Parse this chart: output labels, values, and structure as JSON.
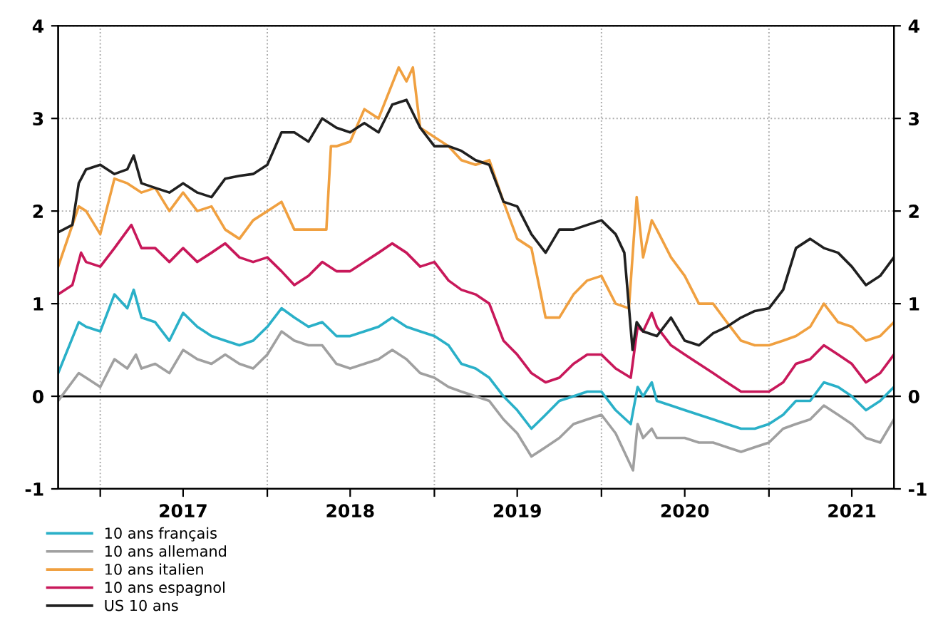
{
  "chart_data": {
    "type": "line",
    "xlim": [
      "2016-10-01",
      "2021-10-01"
    ],
    "xticks": [
      {
        "value": "2017-01-01",
        "label": null
      },
      {
        "value": "2017-07-01",
        "label": "2017"
      },
      {
        "value": "2018-01-01",
        "label": null
      },
      {
        "value": "2018-07-01",
        "label": "2018"
      },
      {
        "value": "2019-01-01",
        "label": null
      },
      {
        "value": "2019-07-01",
        "label": "2019"
      },
      {
        "value": "2020-01-01",
        "label": null
      },
      {
        "value": "2020-07-01",
        "label": "2020"
      },
      {
        "value": "2021-01-01",
        "label": null
      },
      {
        "value": "2021-07-01",
        "label": "2021"
      }
    ],
    "ylim": [
      -1,
      4
    ],
    "yticks": [
      -1,
      0,
      1,
      2,
      3,
      4
    ],
    "y2lim": [
      -1,
      4
    ],
    "y2ticks": [
      -1,
      0,
      1,
      2,
      3,
      4
    ],
    "grid": true,
    "legend": "bottom left",
    "line_style": "solid",
    "ref_lines": [
      {
        "axis": "y",
        "value": 0,
        "color": "#000000"
      }
    ],
    "series": [
      {
        "name": "10 ans français",
        "color": "#2ab0c8",
        "x": [
          "2016-10-01",
          "2016-11-15",
          "2016-12-01",
          "2017-01-01",
          "2017-02-01",
          "2017-03-01",
          "2017-03-15",
          "2017-04-01",
          "2017-05-01",
          "2017-06-01",
          "2017-07-01",
          "2017-08-01",
          "2017-09-01",
          "2017-10-01",
          "2017-11-01",
          "2017-12-01",
          "2018-01-01",
          "2018-02-01",
          "2018-03-01",
          "2018-04-01",
          "2018-05-01",
          "2018-06-01",
          "2018-07-01",
          "2018-08-01",
          "2018-09-01",
          "2018-10-01",
          "2018-11-01",
          "2018-12-01",
          "2019-01-01",
          "2019-02-01",
          "2019-03-01",
          "2019-04-01",
          "2019-05-01",
          "2019-06-01",
          "2019-07-01",
          "2019-08-01",
          "2019-09-01",
          "2019-10-01",
          "2019-11-01",
          "2019-12-01",
          "2020-01-01",
          "2020-02-01",
          "2020-03-05",
          "2020-03-20",
          "2020-04-01",
          "2020-04-20",
          "2020-05-01",
          "2020-06-01",
          "2020-07-01",
          "2020-08-01",
          "2020-09-01",
          "2020-10-01",
          "2020-11-01",
          "2020-12-01",
          "2021-01-01",
          "2021-02-01",
          "2021-03-01",
          "2021-04-01",
          "2021-05-01",
          "2021-06-01",
          "2021-07-01",
          "2021-08-01",
          "2021-09-01",
          "2021-10-01"
        ],
        "values": [
          0.25,
          0.8,
          0.75,
          0.7,
          1.1,
          0.95,
          1.15,
          0.85,
          0.8,
          0.6,
          0.9,
          0.75,
          0.65,
          0.6,
          0.55,
          0.6,
          0.75,
          0.95,
          0.85,
          0.75,
          0.8,
          0.65,
          0.65,
          0.7,
          0.75,
          0.85,
          0.75,
          0.7,
          0.65,
          0.55,
          0.35,
          0.3,
          0.2,
          0.0,
          -0.15,
          -0.35,
          -0.2,
          -0.05,
          0.0,
          0.05,
          0.05,
          -0.15,
          -0.3,
          0.1,
          0.0,
          0.15,
          -0.05,
          -0.1,
          -0.15,
          -0.2,
          -0.25,
          -0.3,
          -0.35,
          -0.35,
          -0.3,
          -0.2,
          -0.05,
          -0.05,
          0.15,
          0.1,
          0.0,
          -0.15,
          -0.05,
          0.1
        ]
      },
      {
        "name": "10 ans allemand",
        "color": "#a0a0a0",
        "x": [
          "2016-10-01",
          "2016-11-15",
          "2016-12-01",
          "2017-01-01",
          "2017-02-01",
          "2017-03-01",
          "2017-03-20",
          "2017-04-01",
          "2017-05-01",
          "2017-06-01",
          "2017-07-01",
          "2017-08-01",
          "2017-09-01",
          "2017-10-01",
          "2017-11-01",
          "2017-12-01",
          "2018-01-01",
          "2018-02-01",
          "2018-03-01",
          "2018-04-01",
          "2018-05-01",
          "2018-06-01",
          "2018-07-01",
          "2018-08-01",
          "2018-09-01",
          "2018-10-01",
          "2018-11-01",
          "2018-12-01",
          "2019-01-01",
          "2019-02-01",
          "2019-03-01",
          "2019-04-01",
          "2019-05-01",
          "2019-06-01",
          "2019-07-01",
          "2019-08-01",
          "2019-09-01",
          "2019-10-01",
          "2019-11-01",
          "2019-12-01",
          "2020-01-01",
          "2020-02-01",
          "2020-03-10",
          "2020-03-20",
          "2020-04-01",
          "2020-04-20",
          "2020-05-01",
          "2020-06-01",
          "2020-07-01",
          "2020-08-01",
          "2020-09-01",
          "2020-10-01",
          "2020-11-01",
          "2020-12-01",
          "2021-01-01",
          "2021-02-01",
          "2021-03-01",
          "2021-04-01",
          "2021-05-01",
          "2021-06-01",
          "2021-07-01",
          "2021-08-01",
          "2021-09-01",
          "2021-10-01"
        ],
        "values": [
          -0.05,
          0.25,
          0.2,
          0.1,
          0.4,
          0.3,
          0.45,
          0.3,
          0.35,
          0.25,
          0.5,
          0.4,
          0.35,
          0.45,
          0.35,
          0.3,
          0.45,
          0.7,
          0.6,
          0.55,
          0.55,
          0.35,
          0.3,
          0.35,
          0.4,
          0.5,
          0.4,
          0.25,
          0.2,
          0.1,
          0.05,
          0.0,
          -0.05,
          -0.25,
          -0.4,
          -0.65,
          -0.55,
          -0.45,
          -0.3,
          -0.25,
          -0.2,
          -0.4,
          -0.8,
          -0.3,
          -0.45,
          -0.35,
          -0.45,
          -0.45,
          -0.45,
          -0.5,
          -0.5,
          -0.55,
          -0.6,
          -0.55,
          -0.5,
          -0.35,
          -0.3,
          -0.25,
          -0.1,
          -0.2,
          -0.3,
          -0.45,
          -0.5,
          -0.25
        ]
      },
      {
        "name": "10 ans italien",
        "color": "#f0a040",
        "x": [
          "2016-10-01",
          "2016-11-15",
          "2016-12-01",
          "2017-01-01",
          "2017-02-01",
          "2017-03-01",
          "2017-04-01",
          "2017-05-01",
          "2017-06-01",
          "2017-07-01",
          "2017-08-01",
          "2017-09-01",
          "2017-10-01",
          "2017-11-01",
          "2017-12-01",
          "2018-01-01",
          "2018-02-01",
          "2018-03-01",
          "2018-04-01",
          "2018-05-10",
          "2018-05-20",
          "2018-06-01",
          "2018-07-01",
          "2018-08-01",
          "2018-09-01",
          "2018-10-15",
          "2018-11-01",
          "2018-11-15",
          "2018-12-01",
          "2019-01-01",
          "2019-02-01",
          "2019-03-01",
          "2019-04-01",
          "2019-05-01",
          "2019-06-01",
          "2019-07-01",
          "2019-08-01",
          "2019-09-01",
          "2019-10-01",
          "2019-11-01",
          "2019-12-01",
          "2020-01-01",
          "2020-02-01",
          "2020-03-01",
          "2020-03-18",
          "2020-04-01",
          "2020-04-20",
          "2020-05-01",
          "2020-06-01",
          "2020-07-01",
          "2020-08-01",
          "2020-09-01",
          "2020-10-01",
          "2020-11-01",
          "2020-12-01",
          "2021-01-01",
          "2021-02-01",
          "2021-03-01",
          "2021-04-01",
          "2021-05-01",
          "2021-06-01",
          "2021-07-01",
          "2021-08-01",
          "2021-09-01",
          "2021-10-01"
        ],
        "values": [
          1.4,
          2.05,
          2.0,
          1.75,
          2.35,
          2.3,
          2.2,
          2.25,
          2.0,
          2.2,
          2.0,
          2.05,
          1.8,
          1.7,
          1.9,
          2.0,
          2.1,
          1.8,
          1.8,
          1.8,
          2.7,
          2.7,
          2.75,
          3.1,
          3.0,
          3.55,
          3.4,
          3.55,
          2.9,
          2.8,
          2.7,
          2.55,
          2.5,
          2.55,
          2.1,
          1.7,
          1.6,
          0.85,
          0.85,
          1.1,
          1.25,
          1.3,
          1.0,
          0.95,
          2.15,
          1.5,
          1.9,
          1.8,
          1.5,
          1.3,
          1.0,
          1.0,
          0.8,
          0.6,
          0.55,
          0.55,
          0.6,
          0.65,
          0.75,
          1.0,
          0.8,
          0.75,
          0.6,
          0.65,
          0.8
        ]
      },
      {
        "name": "10 ans espagnol",
        "color": "#c8185a",
        "x": [
          "2016-10-01",
          "2016-11-01",
          "2016-11-20",
          "2016-12-01",
          "2017-01-01",
          "2017-02-01",
          "2017-03-10",
          "2017-04-01",
          "2017-05-01",
          "2017-06-01",
          "2017-07-01",
          "2017-08-01",
          "2017-09-01",
          "2017-10-01",
          "2017-11-01",
          "2017-12-01",
          "2018-01-01",
          "2018-02-01",
          "2018-03-01",
          "2018-04-01",
          "2018-05-01",
          "2018-06-01",
          "2018-07-01",
          "2018-08-01",
          "2018-09-01",
          "2018-10-01",
          "2018-11-01",
          "2018-12-01",
          "2019-01-01",
          "2019-02-01",
          "2019-03-01",
          "2019-04-01",
          "2019-05-01",
          "2019-06-01",
          "2019-07-01",
          "2019-08-01",
          "2019-09-01",
          "2019-10-01",
          "2019-11-01",
          "2019-12-01",
          "2020-01-01",
          "2020-02-01",
          "2020-03-05",
          "2020-03-20",
          "2020-04-01",
          "2020-04-20",
          "2020-05-01",
          "2020-06-01",
          "2020-07-01",
          "2020-08-01",
          "2020-09-01",
          "2020-10-01",
          "2020-11-01",
          "2020-12-01",
          "2021-01-01",
          "2021-02-01",
          "2021-03-01",
          "2021-04-01",
          "2021-05-01",
          "2021-06-01",
          "2021-07-01",
          "2021-08-01",
          "2021-09-01",
          "2021-10-01"
        ],
        "values": [
          1.1,
          1.2,
          1.55,
          1.45,
          1.4,
          1.6,
          1.85,
          1.6,
          1.6,
          1.45,
          1.6,
          1.45,
          1.55,
          1.65,
          1.5,
          1.45,
          1.5,
          1.35,
          1.2,
          1.3,
          1.45,
          1.35,
          1.35,
          1.45,
          1.55,
          1.65,
          1.55,
          1.4,
          1.45,
          1.25,
          1.15,
          1.1,
          1.0,
          0.6,
          0.45,
          0.25,
          0.15,
          0.2,
          0.35,
          0.45,
          0.45,
          0.3,
          0.2,
          0.75,
          0.7,
          0.9,
          0.75,
          0.55,
          0.45,
          0.35,
          0.25,
          0.15,
          0.05,
          0.05,
          0.05,
          0.15,
          0.35,
          0.4,
          0.55,
          0.45,
          0.35,
          0.15,
          0.25,
          0.45
        ]
      },
      {
        "name": "US 10 ans",
        "color": "#202020",
        "x": [
          "2016-10-01",
          "2016-11-01",
          "2016-11-15",
          "2016-12-01",
          "2017-01-01",
          "2017-02-01",
          "2017-03-01",
          "2017-03-15",
          "2017-04-01",
          "2017-05-01",
          "2017-06-01",
          "2017-07-01",
          "2017-08-01",
          "2017-09-01",
          "2017-10-01",
          "2017-11-01",
          "2017-12-01",
          "2018-01-01",
          "2018-02-01",
          "2018-03-01",
          "2018-04-01",
          "2018-05-01",
          "2018-06-01",
          "2018-07-01",
          "2018-08-01",
          "2018-09-01",
          "2018-10-01",
          "2018-11-01",
          "2018-12-01",
          "2019-01-01",
          "2019-02-01",
          "2019-03-01",
          "2019-04-01",
          "2019-05-01",
          "2019-06-01",
          "2019-07-01",
          "2019-08-01",
          "2019-09-01",
          "2019-10-01",
          "2019-11-01",
          "2019-12-01",
          "2020-01-01",
          "2020-02-01",
          "2020-02-20",
          "2020-03-09",
          "2020-03-18",
          "2020-04-01",
          "2020-05-01",
          "2020-06-01",
          "2020-07-01",
          "2020-08-01",
          "2020-09-01",
          "2020-10-01",
          "2020-11-01",
          "2020-12-01",
          "2021-01-01",
          "2021-02-01",
          "2021-03-01",
          "2021-04-01",
          "2021-05-01",
          "2021-06-01",
          "2021-07-01",
          "2021-08-01",
          "2021-09-01",
          "2021-10-01"
        ],
        "values": [
          1.77,
          1.85,
          2.3,
          2.45,
          2.5,
          2.4,
          2.45,
          2.6,
          2.3,
          2.25,
          2.2,
          2.3,
          2.2,
          2.15,
          2.35,
          2.38,
          2.4,
          2.5,
          2.85,
          2.85,
          2.75,
          3.0,
          2.9,
          2.85,
          2.95,
          2.85,
          3.15,
          3.2,
          2.9,
          2.7,
          2.7,
          2.65,
          2.55,
          2.5,
          2.1,
          2.05,
          1.75,
          1.55,
          1.8,
          1.8,
          1.85,
          1.9,
          1.75,
          1.55,
          0.5,
          0.8,
          0.7,
          0.65,
          0.85,
          0.6,
          0.55,
          0.68,
          0.75,
          0.85,
          0.92,
          0.95,
          1.15,
          1.6,
          1.7,
          1.6,
          1.55,
          1.4,
          1.2,
          1.3,
          1.5
        ]
      }
    ]
  }
}
